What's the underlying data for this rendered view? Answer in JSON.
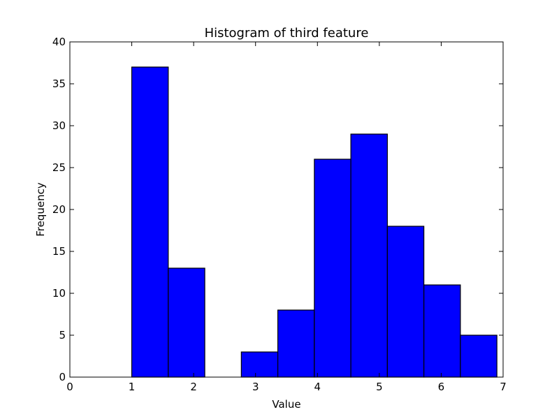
{
  "chart_data": {
    "type": "bar",
    "title": "Histogram of third feature",
    "xlabel": "Value",
    "ylabel": "Frequency",
    "xlim": [
      0,
      7
    ],
    "ylim": [
      0,
      40
    ],
    "xticks": [
      0,
      1,
      2,
      3,
      4,
      5,
      6,
      7
    ],
    "yticks": [
      0,
      5,
      10,
      15,
      20,
      25,
      30,
      35,
      40
    ],
    "bin_edges": [
      1.0,
      1.59,
      2.18,
      2.77,
      3.36,
      3.95,
      4.54,
      5.13,
      5.72,
      6.31,
      6.9
    ],
    "values": [
      37,
      13,
      0,
      3,
      8,
      26,
      29,
      18,
      11,
      5
    ],
    "bar_color": "#0000ff",
    "edge_color": "#000000",
    "grid": false
  }
}
